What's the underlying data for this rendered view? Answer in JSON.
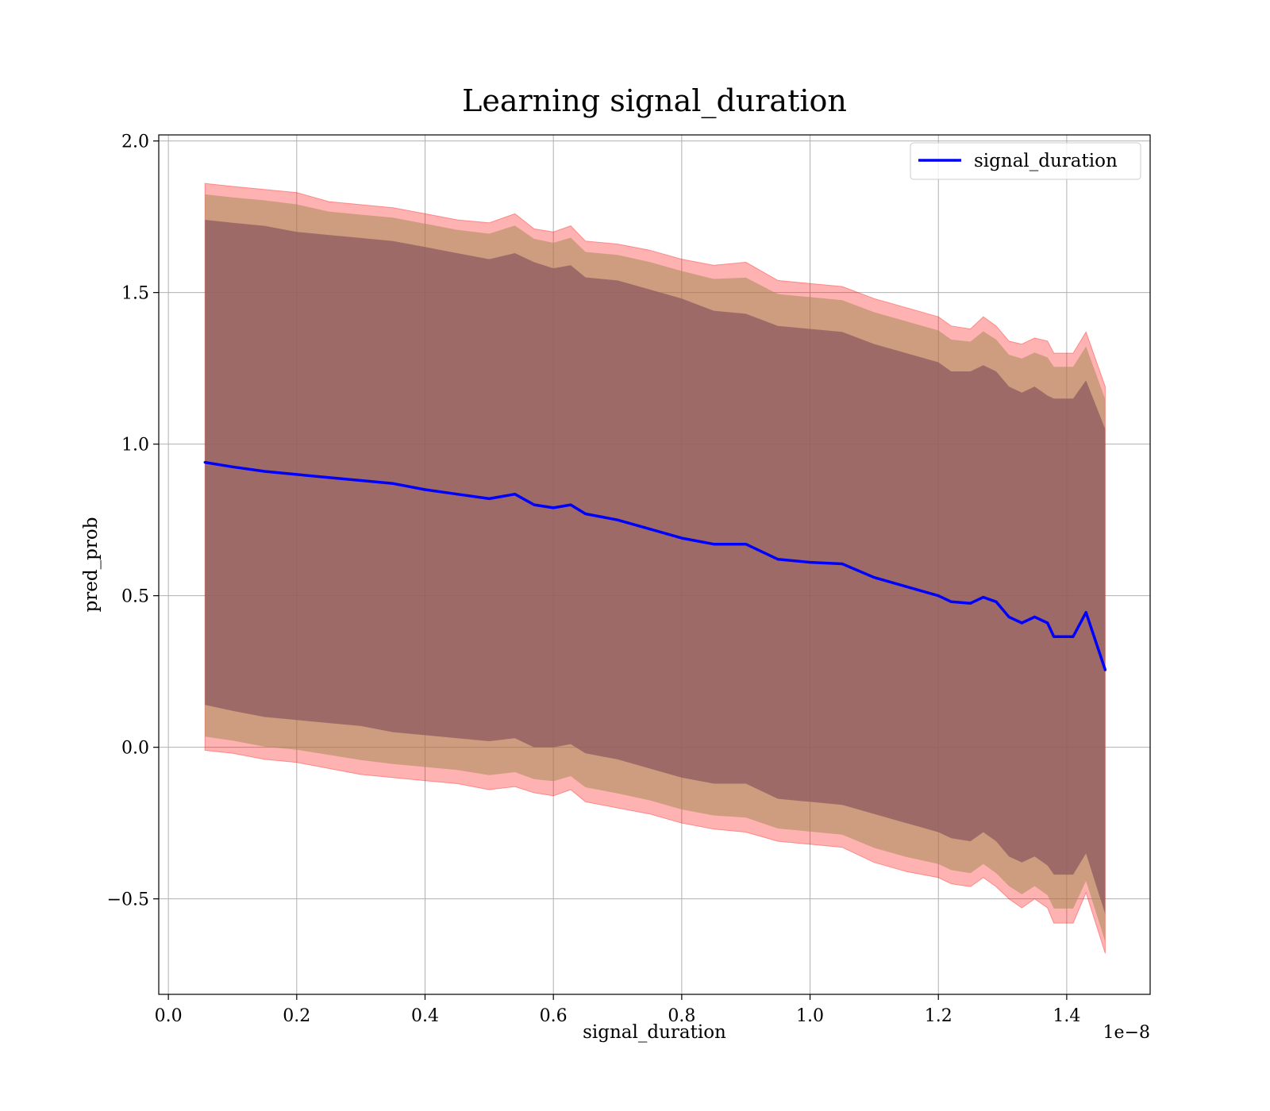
{
  "chart_data": {
    "type": "line",
    "title": "Learning signal_duration",
    "xlabel": "signal_duration",
    "ylabel": "pred_prob",
    "x_offset_text": "1e−8",
    "x_scale_exponent": -8,
    "xlim": [
      -0.015,
      1.53
    ],
    "ylim": [
      -0.815,
      2.02
    ],
    "grid": true,
    "legend_placement": "upper right",
    "x_ticks": [
      0.0,
      0.2,
      0.4,
      0.6,
      0.8,
      1.0,
      1.2,
      1.4
    ],
    "x_tick_labels": [
      "0.0",
      "0.2",
      "0.4",
      "0.6",
      "0.8",
      "1.0",
      "1.2",
      "1.4"
    ],
    "y_ticks": [
      -0.5,
      0.0,
      0.5,
      1.0,
      1.5,
      2.0
    ],
    "y_tick_labels": [
      "−0.5",
      "0.0",
      "0.5",
      "1.0",
      "1.5",
      "2.0"
    ],
    "colors": {
      "line": "#0000ff",
      "band": "#ff0000",
      "inner_band": "#8e5a60",
      "olive": "#a58a55",
      "grid": "#b0b0b0"
    },
    "series": [
      {
        "name": "signal_duration",
        "x": [
          0.057,
          0.1,
          0.15,
          0.2,
          0.25,
          0.3,
          0.35,
          0.4,
          0.45,
          0.5,
          0.54,
          0.57,
          0.6,
          0.627,
          0.65,
          0.7,
          0.75,
          0.8,
          0.85,
          0.9,
          0.95,
          1.0,
          1.05,
          1.1,
          1.15,
          1.2,
          1.22,
          1.25,
          1.27,
          1.29,
          1.31,
          1.33,
          1.35,
          1.37,
          1.38,
          1.41,
          1.43,
          1.46
        ],
        "mean": [
          0.94,
          0.925,
          0.91,
          0.9,
          0.89,
          0.88,
          0.87,
          0.85,
          0.835,
          0.82,
          0.835,
          0.8,
          0.79,
          0.8,
          0.77,
          0.75,
          0.72,
          0.69,
          0.67,
          0.67,
          0.62,
          0.61,
          0.605,
          0.56,
          0.53,
          0.5,
          0.48,
          0.475,
          0.495,
          0.48,
          0.43,
          0.41,
          0.43,
          0.41,
          0.365,
          0.365,
          0.445,
          0.255
        ],
        "outer_upper": [
          1.86,
          1.85,
          1.84,
          1.83,
          1.8,
          1.79,
          1.78,
          1.76,
          1.74,
          1.73,
          1.76,
          1.71,
          1.7,
          1.72,
          1.67,
          1.66,
          1.64,
          1.61,
          1.59,
          1.6,
          1.54,
          1.53,
          1.52,
          1.48,
          1.45,
          1.42,
          1.39,
          1.38,
          1.42,
          1.39,
          1.34,
          1.33,
          1.35,
          1.34,
          1.3,
          1.3,
          1.37,
          1.19
        ],
        "outer_lower": [
          -0.01,
          -0.02,
          -0.04,
          -0.05,
          -0.07,
          -0.09,
          -0.1,
          -0.11,
          -0.12,
          -0.14,
          -0.13,
          -0.15,
          -0.16,
          -0.14,
          -0.18,
          -0.2,
          -0.22,
          -0.25,
          -0.27,
          -0.28,
          -0.31,
          -0.32,
          -0.33,
          -0.38,
          -0.41,
          -0.43,
          -0.45,
          -0.46,
          -0.43,
          -0.46,
          -0.5,
          -0.53,
          -0.5,
          -0.53,
          -0.58,
          -0.58,
          -0.48,
          -0.68
        ],
        "inner_upper": [
          1.74,
          1.73,
          1.72,
          1.7,
          1.69,
          1.68,
          1.67,
          1.65,
          1.63,
          1.61,
          1.63,
          1.6,
          1.58,
          1.59,
          1.55,
          1.54,
          1.51,
          1.48,
          1.44,
          1.43,
          1.39,
          1.38,
          1.37,
          1.33,
          1.3,
          1.27,
          1.24,
          1.24,
          1.26,
          1.24,
          1.19,
          1.17,
          1.19,
          1.16,
          1.15,
          1.15,
          1.21,
          1.05
        ],
        "inner_lower": [
          0.14,
          0.12,
          0.1,
          0.09,
          0.08,
          0.07,
          0.05,
          0.04,
          0.03,
          0.02,
          0.03,
          0.0,
          0.0,
          0.01,
          -0.02,
          -0.04,
          -0.07,
          -0.1,
          -0.12,
          -0.12,
          -0.17,
          -0.18,
          -0.19,
          -0.22,
          -0.25,
          -0.28,
          -0.3,
          -0.31,
          -0.28,
          -0.31,
          -0.36,
          -0.38,
          -0.36,
          -0.39,
          -0.42,
          -0.42,
          -0.35,
          -0.55
        ]
      }
    ]
  }
}
